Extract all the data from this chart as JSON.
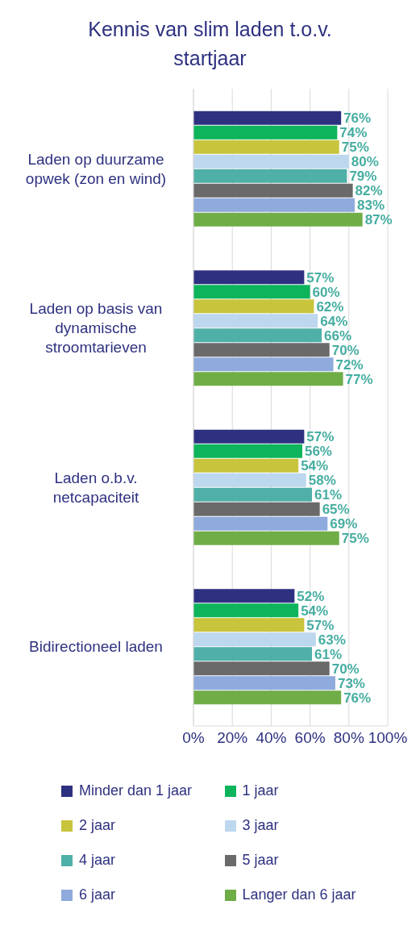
{
  "chart_data": {
    "type": "bar",
    "orientation": "horizontal",
    "title": "Kennis van slim laden t.o.v. startjaar",
    "categories": [
      "Laden op duurzame opwek (zon en wind)",
      "Laden op basis van dynamische stroomtarieven",
      "Laden o.b.v. netcapaciteit",
      "Bidirectioneel laden"
    ],
    "series": [
      {
        "name": "Minder dan 1 jaar",
        "color": "#2e3180",
        "values": [
          76,
          57,
          57,
          52
        ],
        "value_labels": [
          "76%",
          "57%",
          "57%",
          "52%"
        ]
      },
      {
        "name": "1 jaar",
        "color": "#0db45c",
        "values": [
          74,
          60,
          56,
          54
        ],
        "value_labels": [
          "74%",
          "60%",
          "56%",
          "54%"
        ]
      },
      {
        "name": "2 jaar",
        "color": "#c8c43c",
        "values": [
          75,
          62,
          54,
          57
        ],
        "value_labels": [
          "75%",
          "62%",
          "54%",
          "57%"
        ]
      },
      {
        "name": "3 jaar",
        "color": "#bdd7ee",
        "values": [
          80,
          64,
          58,
          63
        ],
        "value_labels": [
          "80%",
          "64%",
          "58%",
          "63%"
        ]
      },
      {
        "name": "4 jaar",
        "color": "#4fb0a8",
        "values": [
          79,
          66,
          61,
          61
        ],
        "value_labels": [
          "79%",
          "66%",
          "61%",
          "61%"
        ]
      },
      {
        "name": "5 jaar",
        "color": "#6a6a6a",
        "values": [
          82,
          70,
          65,
          70
        ],
        "value_labels": [
          "82%",
          "70%",
          "65%",
          "70%"
        ]
      },
      {
        "name": "6 jaar",
        "color": "#8faadc",
        "values": [
          83,
          72,
          69,
          73
        ],
        "value_labels": [
          "83%",
          "72%",
          "69%",
          "73%"
        ]
      },
      {
        "name": "Langer dan 6 jaar",
        "color": "#70ad47",
        "values": [
          87,
          77,
          75,
          76
        ],
        "value_labels": [
          "87%",
          "77%",
          "75%",
          "76%"
        ]
      }
    ],
    "xlim": [
      0,
      100
    ],
    "xticks": [
      {
        "value": 0,
        "label": "0%"
      },
      {
        "value": 20,
        "label": "20%"
      },
      {
        "value": 40,
        "label": "40%"
      },
      {
        "value": 60,
        "label": "60%"
      },
      {
        "value": 80,
        "label": "80%"
      },
      {
        "value": 100,
        "label": "100%"
      }
    ],
    "grid": "x",
    "legend": "bottom"
  }
}
